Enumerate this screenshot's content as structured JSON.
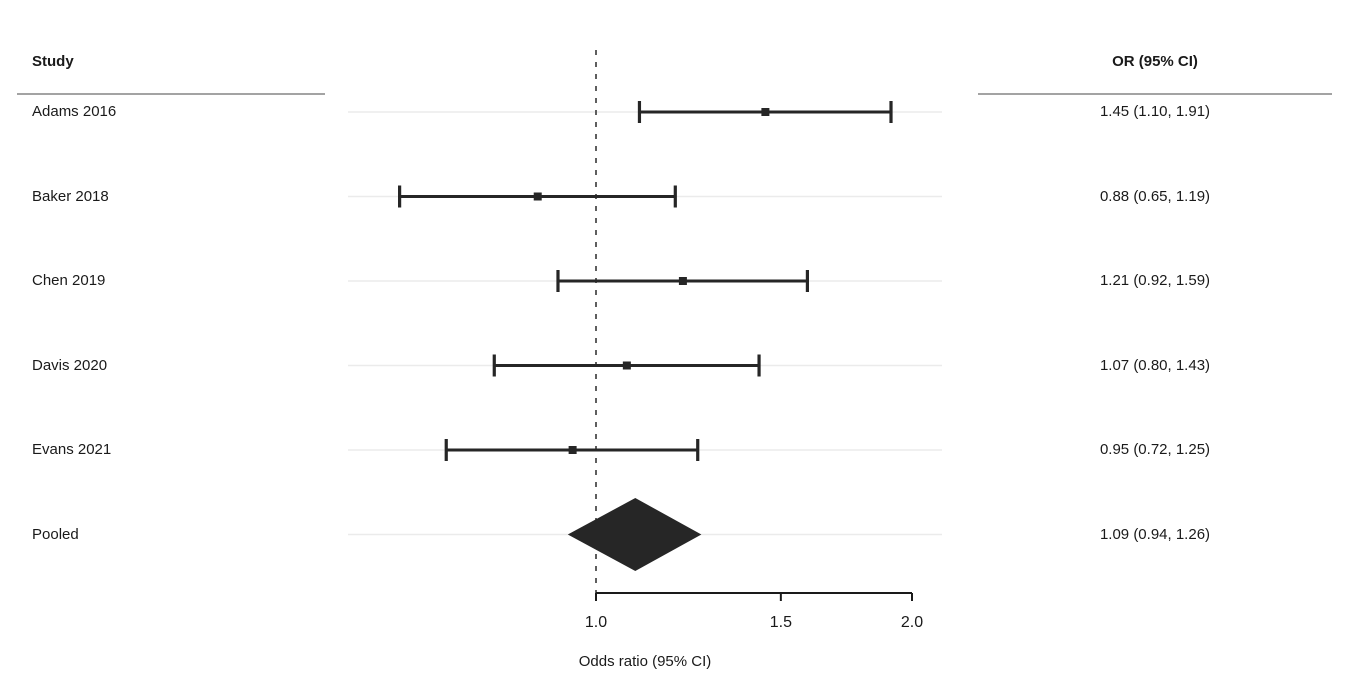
{
  "header": {
    "study_col": "Study",
    "or_col": "OR (95% CI)"
  },
  "chart_data": {
    "type": "forest",
    "scale": "log",
    "title": "",
    "xlabel": "Odds ratio (95% CI)",
    "x_ticks": [
      1.0,
      1.5,
      2.0
    ],
    "x_tick_labels": [
      "1.0",
      "1.5",
      "2.0"
    ],
    "x_range": [
      1.0,
      2.0
    ],
    "reference_line": 1.0,
    "grid": "horizontal-row-lines",
    "studies": [
      {
        "label": "Adams 2016",
        "or": 1.45,
        "lo": 1.1,
        "hi": 1.91,
        "display": "1.45 (1.10, 1.91)"
      },
      {
        "label": "Baker 2018",
        "or": 0.88,
        "lo": 0.65,
        "hi": 1.19,
        "display": "0.88 (0.65, 1.19)"
      },
      {
        "label": "Chen 2019",
        "or": 1.21,
        "lo": 0.92,
        "hi": 1.59,
        "display": "1.21 (0.92, 1.59)"
      },
      {
        "label": "Davis 2020",
        "or": 1.07,
        "lo": 0.8,
        "hi": 1.43,
        "display": "1.07 (0.80, 1.43)"
      },
      {
        "label": "Evans 2021",
        "or": 0.95,
        "lo": 0.72,
        "hi": 1.25,
        "display": "0.95 (0.72, 1.25)"
      }
    ],
    "pooled": {
      "label": "Pooled",
      "or": 1.09,
      "lo": 0.94,
      "hi": 1.26,
      "display": "1.09 (0.94, 1.26)"
    },
    "colors": {
      "marker": "#262626",
      "ci_line": "#262626",
      "diamond": "#262626",
      "gridline": "#ebebeb",
      "reference_line": "#4d4d4d",
      "axis": "#1a1a1a",
      "separator": "#a3a3a3"
    }
  }
}
